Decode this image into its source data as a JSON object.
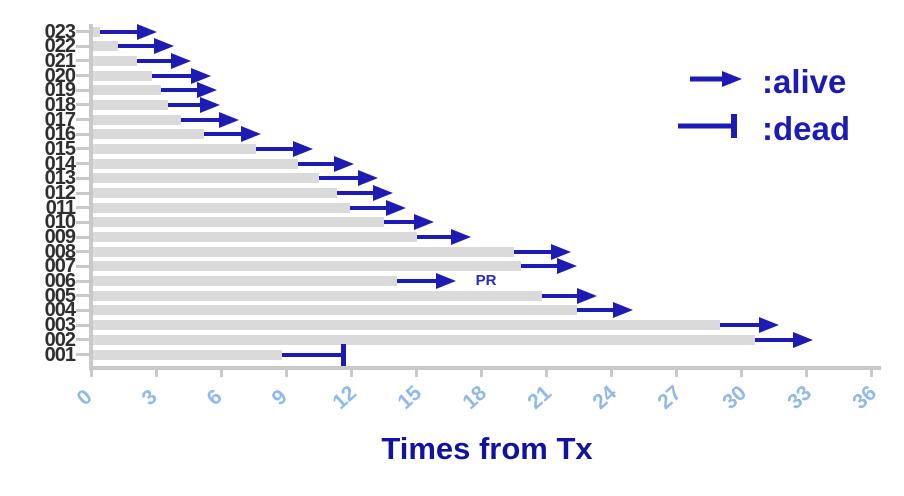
{
  "chart_data": {
    "type": "bar",
    "variant": "swimmer-plot",
    "xlabel": "Times from Tx",
    "xlim": [
      0,
      36
    ],
    "x_ticks": [
      0,
      3,
      6,
      9,
      12,
      15,
      18,
      21,
      24,
      27,
      30,
      33,
      36
    ],
    "grid": false,
    "legend": {
      "position": "top-right",
      "items": [
        {
          "marker": "arrow",
          "label": ":alive"
        },
        {
          "marker": "tbar",
          "label": ":dead"
        }
      ]
    },
    "rows": [
      {
        "id": "023",
        "bar": 0.4,
        "end": 3.0,
        "status": "alive"
      },
      {
        "id": "022",
        "bar": 1.2,
        "end": 3.8,
        "status": "alive"
      },
      {
        "id": "021",
        "bar": 2.1,
        "end": 4.6,
        "status": "alive"
      },
      {
        "id": "020",
        "bar": 2.8,
        "end": 5.5,
        "status": "alive"
      },
      {
        "id": "019",
        "bar": 3.2,
        "end": 5.8,
        "status": "alive"
      },
      {
        "id": "018",
        "bar": 3.5,
        "end": 5.9,
        "status": "alive"
      },
      {
        "id": "017",
        "bar": 4.1,
        "end": 6.8,
        "status": "alive"
      },
      {
        "id": "016",
        "bar": 5.2,
        "end": 7.8,
        "status": "alive"
      },
      {
        "id": "015",
        "bar": 7.6,
        "end": 10.2,
        "status": "alive"
      },
      {
        "id": "014",
        "bar": 9.5,
        "end": 12.1,
        "status": "alive"
      },
      {
        "id": "013",
        "bar": 10.5,
        "end": 13.2,
        "status": "alive"
      },
      {
        "id": "012",
        "bar": 11.3,
        "end": 13.9,
        "status": "alive"
      },
      {
        "id": "011",
        "bar": 11.9,
        "end": 14.5,
        "status": "alive"
      },
      {
        "id": "010",
        "bar": 13.5,
        "end": 15.8,
        "status": "alive"
      },
      {
        "id": "009",
        "bar": 15.0,
        "end": 17.5,
        "status": "alive"
      },
      {
        "id": "008",
        "bar": 19.5,
        "end": 22.1,
        "status": "alive"
      },
      {
        "id": "007",
        "bar": 19.8,
        "end": 22.4,
        "status": "alive"
      },
      {
        "id": "006",
        "bar": 14.1,
        "end": 16.8,
        "status": "alive",
        "annotation": "PR",
        "annotation_x": 18.2
      },
      {
        "id": "005",
        "bar": 20.8,
        "end": 23.3,
        "status": "alive"
      },
      {
        "id": "004",
        "bar": 22.4,
        "end": 25.0,
        "status": "alive"
      },
      {
        "id": "003",
        "bar": 29.0,
        "end": 31.7,
        "status": "alive"
      },
      {
        "id": "002",
        "bar": 30.6,
        "end": 33.3,
        "status": "alive"
      },
      {
        "id": "001",
        "bar": 8.8,
        "end": 11.6,
        "status": "dead"
      }
    ]
  },
  "colors": {
    "arrow_blue": "#1c1cb4",
    "title_blue": "#1212a2",
    "x_tick_label_blue": "#8fb9e9",
    "bar_gray": "#dadada",
    "axis_gray": "#c9c9c9",
    "y_label_color": "#2f2f2f",
    "annotation_blue": "#2a2ac4",
    "background": "#ffffff"
  }
}
